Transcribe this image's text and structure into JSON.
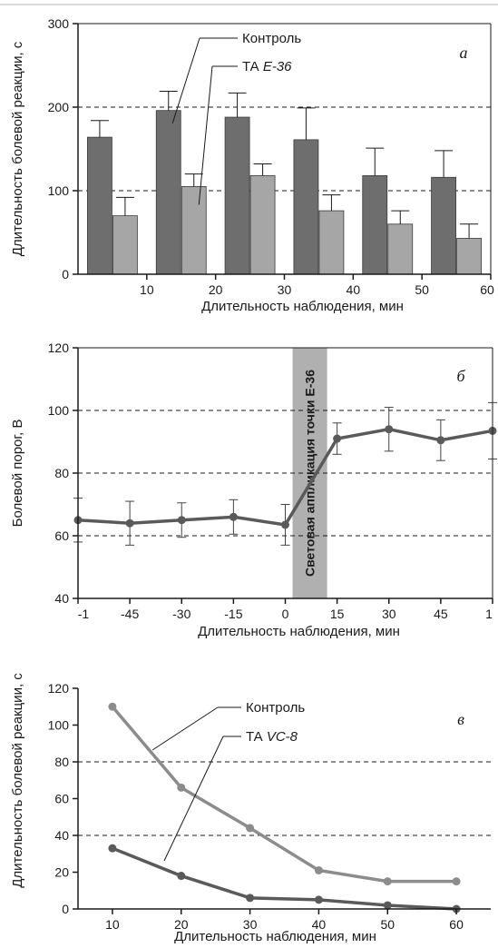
{
  "colors": {
    "control": "#6e6e6e",
    "treatment": "#a6a6a6",
    "line_dark": "#5a5a5a",
    "line_light": "#8c8c8c",
    "band": "#b0b0b0",
    "axis": "#1a1a1a",
    "grid": "#1a1a1a"
  },
  "chart_data": [
    {
      "panel": "a",
      "type": "bar",
      "letter": "а",
      "ylabel": "Длительность болевой реакции, с",
      "xlabel": "Длительность наблюдения, мин",
      "ylim": [
        0,
        300
      ],
      "yticks": [
        0,
        100,
        200,
        300
      ],
      "xlim": [
        0,
        60
      ],
      "xticks": [
        10,
        20,
        30,
        40,
        50,
        60
      ],
      "grid": "dashed at 100 and 200",
      "categories": [
        5,
        15,
        25,
        35,
        45,
        55
      ],
      "series": [
        {
          "name": "Контроль",
          "values": [
            164,
            196,
            188,
            161,
            118,
            116
          ],
          "errors": [
            20,
            23,
            29,
            38,
            33,
            32
          ]
        },
        {
          "name": "ТА E-36",
          "values": [
            70,
            105,
            118,
            76,
            60,
            43
          ],
          "errors": [
            22,
            15,
            14,
            19,
            16,
            17
          ]
        }
      ],
      "annotations": [
        {
          "text": "Контроль",
          "target_series": 0,
          "target_index": 1
        },
        {
          "prefix": "ТА ",
          "italic": "E-36",
          "target_series": 1,
          "target_index": 1
        }
      ]
    },
    {
      "panel": "b",
      "type": "line",
      "letter": "б",
      "ylabel": "Болевой порог, В",
      "xlabel": "Длительность наблюдения, мин",
      "ylim": [
        40,
        120
      ],
      "yticks": [
        40,
        60,
        80,
        100,
        120
      ],
      "grid": "dashed at 60, 80, 100",
      "x_labels": [
        "-1",
        "-45",
        "-30",
        "-15",
        "0",
        "15",
        "30",
        "45",
        "1"
      ],
      "values": [
        65,
        64,
        65,
        66,
        63.5,
        91,
        94,
        90.5,
        93.5
      ],
      "errors": [
        7,
        7,
        5.5,
        5.5,
        6.5,
        5,
        7,
        6.5,
        9
      ],
      "band_text": "Световая аппликация точки Е-36"
    },
    {
      "panel": "c",
      "type": "line",
      "letter": "в",
      "ylabel": "Длительность болевой реакции, с",
      "xlabel": "Длительность наблюдения, мин",
      "ylim": [
        0,
        120
      ],
      "yticks": [
        0,
        20,
        40,
        60,
        80,
        100,
        120
      ],
      "xlim": [
        5,
        65
      ],
      "xticks": [
        10,
        20,
        30,
        40,
        50,
        60
      ],
      "grid": "dashed at 40 and 80",
      "x": [
        10,
        20,
        30,
        40,
        50,
        60
      ],
      "series": [
        {
          "name": "Контроль",
          "values": [
            110,
            66,
            44,
            21,
            15,
            15
          ]
        },
        {
          "name": "ТА VC-8",
          "values": [
            33,
            18,
            6,
            5,
            2,
            0
          ]
        }
      ],
      "annotations": [
        {
          "text": "Контроль",
          "target_series": 0
        },
        {
          "prefix": "ТА ",
          "italic": "VC-8",
          "target_series": 1
        }
      ]
    }
  ]
}
